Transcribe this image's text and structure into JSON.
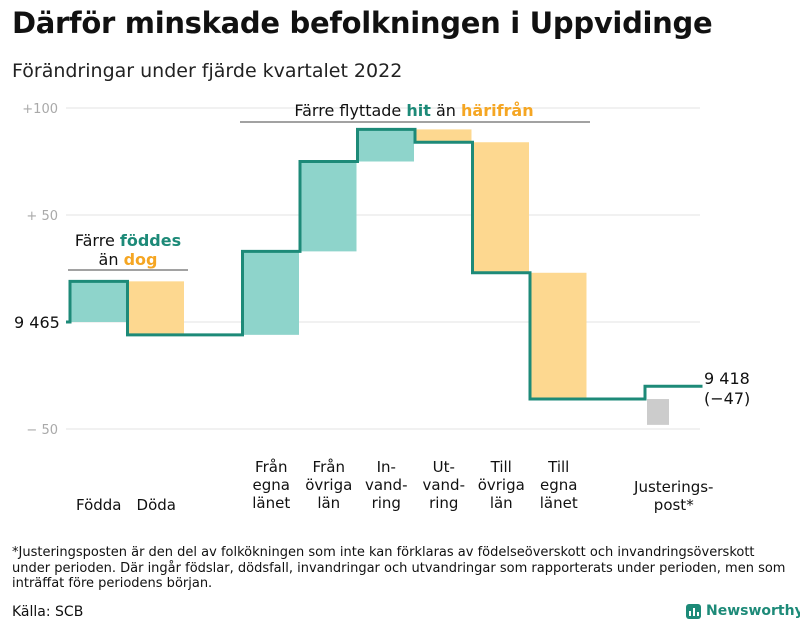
{
  "title": "Därför minskade befolkningen i Uppvidinge",
  "subtitle": "Förändringar under fjärde kvartalet 2022",
  "footnote": "*Justeringsposten är den del av folkökningen som inte kan förklaras av födelseöverskott och invandringsöverskott under perioden. Där ingår födslar, dödsfall, invandringar och utvandringar som rapporterats under perioden, men som inträffat före periodens början.",
  "source": "Källa: SCB",
  "brand": {
    "name": "Newsworthy",
    "icon": "bar-chart-logo-icon"
  },
  "colors": {
    "increase": "#8ed4cb",
    "decrease": "#fdd890",
    "adjustment": "#cccccc",
    "line": "#1d8a78",
    "accent_orange": "#f5a623"
  },
  "chart_data": {
    "type": "waterfall",
    "start_value": 9465,
    "start_label": "9 465",
    "end_value": 9418,
    "end_label": "9 418",
    "end_change_label": "(−47)",
    "y_ticks": [
      {
        "value": 100,
        "label": "+100"
      },
      {
        "value": 50,
        "label": "+ 50"
      },
      {
        "value": -50,
        "label": "− 50"
      }
    ],
    "ylim": [
      -50,
      100
    ],
    "grid": true,
    "steps": [
      {
        "label": [
          "Födda"
        ],
        "change": 19,
        "kind": "increase"
      },
      {
        "label": [
          "Döda"
        ],
        "change": -25,
        "kind": "decrease"
      },
      {
        "label": [
          ""
        ],
        "change": 0,
        "kind": "none"
      },
      {
        "label": [
          "Från",
          "egna",
          "länet"
        ],
        "change": 39,
        "kind": "increase"
      },
      {
        "label": [
          "Från",
          "övriga",
          "län"
        ],
        "change": 42,
        "kind": "increase"
      },
      {
        "label": [
          "In-",
          "vand-",
          "ring"
        ],
        "change": 15,
        "kind": "increase"
      },
      {
        "label": [
          "Ut-",
          "vand-",
          "ring"
        ],
        "change": -6,
        "kind": "decrease"
      },
      {
        "label": [
          "Till",
          "övriga",
          "län"
        ],
        "change": -61,
        "kind": "decrease"
      },
      {
        "label": [
          "Till",
          "egna",
          "länet"
        ],
        "change": -59,
        "kind": "decrease"
      },
      {
        "label": [
          ""
        ],
        "change": 0,
        "kind": "none"
      },
      {
        "label": [
          "Justerings-",
          "post*"
        ],
        "change": 6,
        "kind": "adjustment"
      }
    ],
    "annotations": [
      {
        "parts": [
          {
            "text": "Färre flyttade ",
            "color": "#111111",
            "bold": false
          },
          {
            "text": "hit",
            "color": "#1d8a78",
            "bold": true
          },
          {
            "text": " än ",
            "color": "#111111",
            "bold": false
          },
          {
            "text": "härifrån",
            "color": "#f5a623",
            "bold": true
          }
        ]
      },
      {
        "lines": [
          [
            {
              "text": "Färre ",
              "color": "#111111",
              "bold": false
            },
            {
              "text": "föddes",
              "color": "#1d8a78",
              "bold": true
            }
          ],
          [
            {
              "text": "än ",
              "color": "#111111",
              "bold": false
            },
            {
              "text": "dog",
              "color": "#f5a623",
              "bold": true
            }
          ]
        ]
      }
    ]
  }
}
